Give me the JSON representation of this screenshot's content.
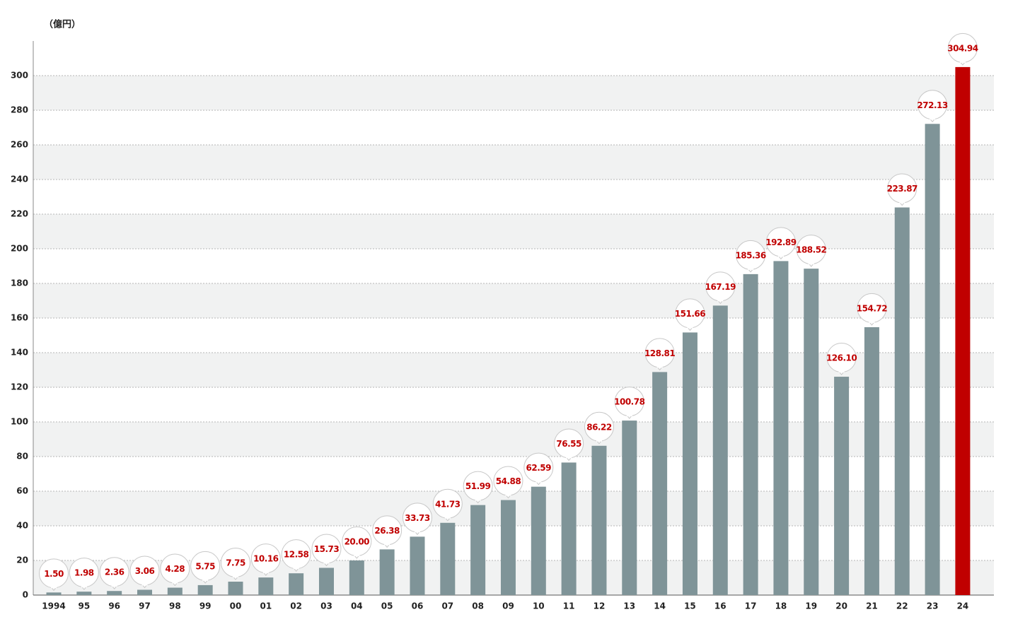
{
  "chart_data": {
    "type": "bar",
    "unit_label": "（億円）",
    "categories": [
      "1994",
      "95",
      "96",
      "97",
      "98",
      "99",
      "00",
      "01",
      "02",
      "03",
      "04",
      "05",
      "06",
      "07",
      "08",
      "09",
      "10",
      "11",
      "12",
      "13",
      "14",
      "15",
      "16",
      "17",
      "18",
      "19",
      "20",
      "21",
      "22",
      "23",
      "24"
    ],
    "values": [
      1.5,
      1.98,
      2.36,
      3.06,
      4.28,
      5.75,
      7.75,
      10.16,
      12.58,
      15.73,
      20,
      26.38,
      33.73,
      41.73,
      51.99,
      54.88,
      62.59,
      76.55,
      86.22,
      100.78,
      128.81,
      151.66,
      167.19,
      185.36,
      192.89,
      188.52,
      126.1,
      154.72,
      223.87,
      272.13,
      304.94
    ],
    "value_labels": [
      "1.50",
      "1.98",
      "2.36",
      "3.06",
      "4.28",
      "5.75",
      "7.75",
      "10.16",
      "12.58",
      "15.73",
      "20.00",
      "26.38",
      "33.73",
      "41.73",
      "51.99",
      "54.88",
      "62.59",
      "76.55",
      "86.22",
      "100.78",
      "128.81",
      "151.66",
      "167.19",
      "185.36",
      "192.89",
      "188.52",
      "126.10",
      "154.72",
      "223.87",
      "272.13",
      "304.94"
    ],
    "colors": [
      "#7f9498",
      "#7f9498",
      "#7f9498",
      "#7f9498",
      "#7f9498",
      "#7f9498",
      "#7f9498",
      "#7f9498",
      "#7f9498",
      "#7f9498",
      "#7f9498",
      "#7f9498",
      "#7f9498",
      "#7f9498",
      "#7f9498",
      "#7f9498",
      "#7f9498",
      "#7f9498",
      "#7f9498",
      "#7f9498",
      "#7f9498",
      "#7f9498",
      "#7f9498",
      "#7f9498",
      "#7f9498",
      "#7f9498",
      "#7f9498",
      "#7f9498",
      "#7f9498",
      "#7f9498",
      "#c00000"
    ],
    "ylim": [
      0,
      320
    ],
    "yticks": [
      0,
      20,
      40,
      60,
      80,
      100,
      120,
      140,
      160,
      180,
      200,
      220,
      240,
      260,
      280,
      300
    ],
    "grid": true
  }
}
